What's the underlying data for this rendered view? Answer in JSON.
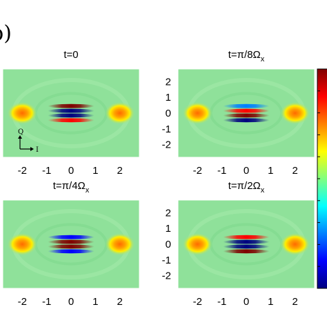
{
  "figure_label": "b)",
  "colors": {
    "background_field": "#8fe19a",
    "colormap": [
      "#00007f",
      "#0000ff",
      "#0080ff",
      "#00ffff",
      "#80ff80",
      "#ffff00",
      "#ff8000",
      "#ff0000",
      "#7f0000"
    ]
  },
  "chart_data": [
    {
      "type": "heatmap",
      "title_parts": {
        "base": "t=0",
        "sub": ""
      },
      "xticks": [
        "-2",
        "-1",
        "0",
        "1",
        "2"
      ],
      "yticks": [
        "2",
        "1",
        "0",
        "-1",
        "-2"
      ],
      "show_yticks": false,
      "show_xticks": true,
      "axis_inset": {
        "y_label": "Q",
        "x_label": "I"
      },
      "xlim": [
        -2.8,
        2.8
      ],
      "ylim": [
        -2.8,
        2.8
      ],
      "lobes": [
        {
          "x": -2,
          "y": 0,
          "level": 1.0
        },
        {
          "x": 2,
          "y": 0,
          "level": 1.0
        }
      ],
      "fringes": [
        {
          "y": 0.45,
          "level": 0.9
        },
        {
          "y": 0.15,
          "level": -1.0
        },
        {
          "y": -0.15,
          "level": -0.9
        },
        {
          "y": -0.45,
          "level": 0.7
        }
      ]
    },
    {
      "type": "heatmap",
      "title_parts": {
        "base": "t=π/8Ω",
        "sub": "x"
      },
      "xticks": [
        "-2",
        "-1",
        "0",
        "1",
        "2"
      ],
      "yticks": [
        "2",
        "1",
        "0",
        "-1",
        "-2"
      ],
      "show_yticks": true,
      "show_xticks": true,
      "xlim": [
        -2.8,
        2.8
      ],
      "ylim": [
        -2.8,
        2.8
      ],
      "lobes": [
        {
          "x": -2,
          "y": 0,
          "level": 1.0
        },
        {
          "x": 2,
          "y": 0,
          "level": 1.0
        }
      ],
      "fringes": [
        {
          "y": 0.45,
          "level": -0.6
        },
        {
          "y": 0.15,
          "level": 0.85
        },
        {
          "y": -0.15,
          "level": 0.95
        },
        {
          "y": -0.45,
          "level": -0.9
        }
      ]
    },
    {
      "type": "heatmap",
      "title_parts": {
        "base": "t=π/4Ω",
        "sub": "x"
      },
      "xticks": [
        "-2",
        "-1",
        "0",
        "1",
        "2"
      ],
      "yticks": [
        "2",
        "1",
        "0",
        "-1",
        "-2"
      ],
      "show_yticks": false,
      "show_xticks": true,
      "xlim": [
        -2.8,
        2.8
      ],
      "ylim": [
        -2.8,
        2.8
      ],
      "lobes": [
        {
          "x": -2,
          "y": 0,
          "level": 1.0
        },
        {
          "x": 2,
          "y": 0,
          "level": 1.0
        }
      ],
      "fringes": [
        {
          "y": 0.45,
          "level": -0.8
        },
        {
          "y": 0.15,
          "level": 1.0
        },
        {
          "y": -0.15,
          "level": 0.9
        },
        {
          "y": -0.45,
          "level": -0.7
        }
      ]
    },
    {
      "type": "heatmap",
      "title_parts": {
        "base": "t=π/2Ω",
        "sub": "x"
      },
      "xticks": [
        "-2",
        "-1",
        "0",
        "1",
        "2"
      ],
      "yticks": [
        "2",
        "1",
        "0",
        "-1",
        "-2"
      ],
      "show_yticks": true,
      "show_xticks": true,
      "xlim": [
        -2.8,
        2.8
      ],
      "ylim": [
        -2.8,
        2.8
      ],
      "lobes": [
        {
          "x": -2,
          "y": 0,
          "level": 1.0
        },
        {
          "x": 2,
          "y": 0,
          "level": 1.0
        }
      ],
      "fringes": [
        {
          "y": 0.45,
          "level": 0.8
        },
        {
          "y": 0.15,
          "level": -0.9
        },
        {
          "y": -0.15,
          "level": -1.0
        },
        {
          "y": -0.45,
          "level": 0.9
        }
      ]
    }
  ]
}
